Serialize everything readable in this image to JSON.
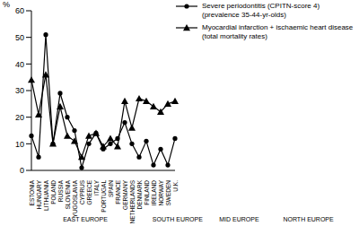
{
  "chart_data": {
    "type": "line",
    "y_label": "%",
    "categories": [
      "ESTONIA",
      "HUNGARY",
      "LITHUANIA",
      "POLAND",
      "RUSSIA",
      "SLOVENIA",
      "YUGOSLAVIA",
      "CYPRUS",
      "GREECE",
      "ITALY",
      "PORTUGAL",
      "SPAIN",
      "FRANCE",
      "GERMANY",
      "NETHERLANDS",
      "DENMARK",
      "FINLAND",
      "IRELAND",
      "NORWAY",
      "SWEDEN",
      "U.K."
    ],
    "series": [
      {
        "name": "Severe periodontitis (CPITN-score 4)\n(prevalence 35-44-yr-olds)",
        "color": "#000000",
        "marker": "circle",
        "values": [
          13,
          5,
          51,
          10,
          29,
          20,
          15,
          1,
          10,
          14,
          8,
          10,
          12,
          18,
          10,
          5,
          11,
          2,
          8,
          2,
          12
        ]
      },
      {
        "name": "Myocardial infarction + ischaemic heart disease\n(total mortality rates)",
        "color": "#000000",
        "marker": "triangle",
        "values": [
          34,
          21,
          36,
          10,
          24,
          13,
          11,
          5,
          13,
          14,
          9,
          12,
          9,
          26,
          16,
          27,
          26,
          24,
          22,
          25,
          26
        ]
      }
    ],
    "groups": [
      {
        "label": "EAST EUROPE",
        "categories": [
          "ESTONIA",
          "HUNGARY",
          "LITHUANIA",
          "POLAND",
          "RUSSIA",
          "SLOVENIA",
          "YUGOSLAVIA"
        ]
      },
      {
        "label": "SOUTH EUROPE",
        "categories": [
          "CYPRUS",
          "GREECE",
          "ITALY",
          "PORTUGAL",
          "SPAIN"
        ]
      },
      {
        "label": "MID EUROPE",
        "categories": [
          "FRANCE",
          "GERMANY",
          "NETHERLANDS"
        ]
      },
      {
        "label": "NORTH EUROPE",
        "categories": [
          "DENMARK",
          "FINLAND",
          "IRELAND",
          "NORWAY",
          "SWEDEN",
          "U.K."
        ]
      }
    ],
    "ylim": [
      0,
      60
    ],
    "yticks": [
      0,
      10,
      20,
      30,
      40,
      50,
      60
    ],
    "grid": false,
    "legend": "top-right"
  }
}
